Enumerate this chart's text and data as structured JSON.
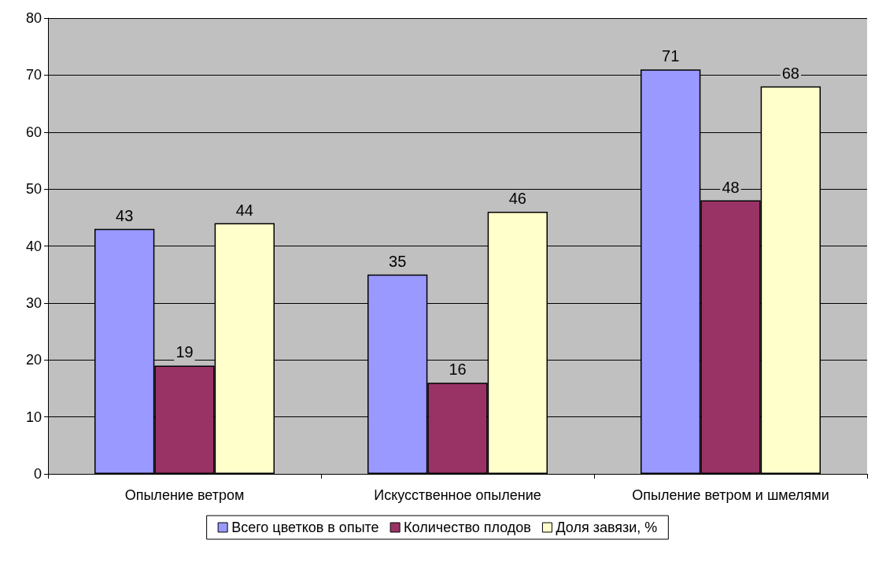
{
  "chart_data": {
    "type": "bar",
    "categories": [
      "Опыление ветром",
      "Искусственное опыление",
      "Опыление ветром и шмелями"
    ],
    "series": [
      {
        "name": "Всего цветков в опыте",
        "color": "#9999ff",
        "values": [
          43,
          35,
          71
        ]
      },
      {
        "name": "Количество плодов",
        "color": "#993366",
        "values": [
          19,
          16,
          48
        ]
      },
      {
        "name": "Доля завязи, %",
        "color": "#ffffcc",
        "values": [
          44,
          46,
          68
        ]
      }
    ],
    "ylim": [
      0,
      80
    ],
    "yticks": [
      0,
      10,
      20,
      30,
      40,
      50,
      60,
      70,
      80
    ],
    "grid": "y",
    "legend": "bottom",
    "data_labels": true
  }
}
